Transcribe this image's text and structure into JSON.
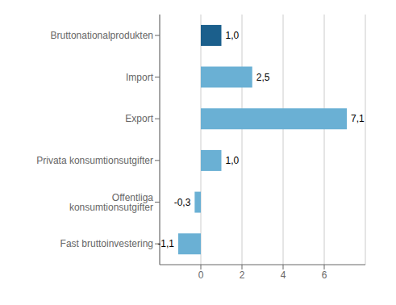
{
  "chart_data": {
    "type": "bar",
    "orientation": "horizontal",
    "categories": [
      "Bruttonationalprodukten",
      "Import",
      "Export",
      "Privata konsumtionsutgifter",
      "Offentliga konsumtionsutgifter",
      "Fast bruttoinvestering"
    ],
    "values": [
      1.0,
      2.5,
      7.1,
      1.0,
      -0.3,
      -1.1
    ],
    "value_labels": [
      "1,0",
      "2,5",
      "7,1",
      "1,0",
      "-0,3",
      "-1,1"
    ],
    "colors": [
      "#1b5f8c",
      "#6ab0d4",
      "#6ab0d4",
      "#6ab0d4",
      "#6ab0d4",
      "#6ab0d4"
    ],
    "xlim": [
      -2.0,
      8.0
    ],
    "xticks": [
      0,
      2,
      4,
      6
    ],
    "grid": true,
    "data_labels": true
  }
}
